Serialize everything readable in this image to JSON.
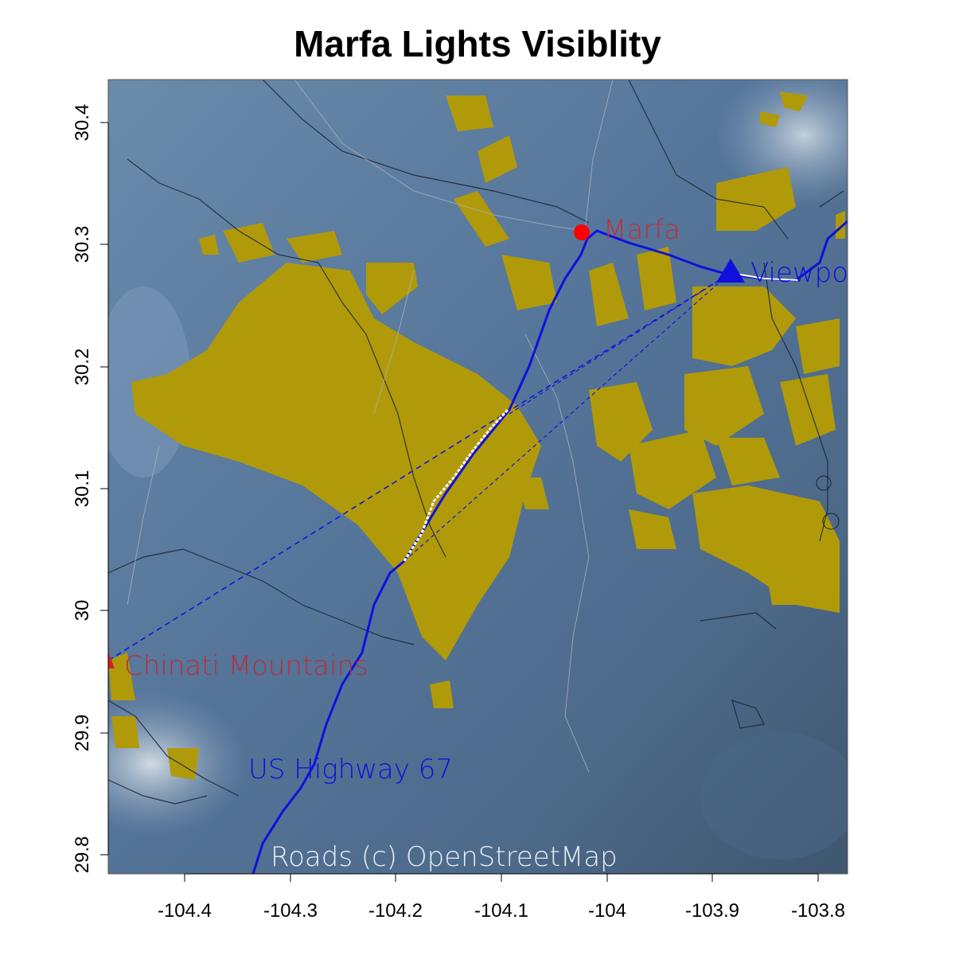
{
  "title": "Marfa Lights Visiblity",
  "attribution": "Roads (c) OpenStreetMap",
  "axes": {
    "x_ticks": [
      "-104.4",
      "-104.3",
      "-104.2",
      "-104.1",
      "-104",
      "-103.9",
      "-103.8"
    ],
    "y_ticks": [
      "30.4",
      "30.3",
      "30.2",
      "30.1",
      "30",
      "29.9",
      "29.8"
    ],
    "xlim": [
      -104.47,
      -103.77
    ],
    "ylim": [
      29.79,
      30.43
    ]
  },
  "places": {
    "marfa": {
      "label": "Marfa",
      "lon": -104.023,
      "lat": 30.309,
      "symbol": "red-circle"
    },
    "viewpoint": {
      "label": "Viewpo",
      "lon": -103.883,
      "lat": 30.274,
      "symbol": "blue-triangle"
    },
    "chinati": {
      "label": "Chinati Mountains",
      "lon": -104.47,
      "lat": 29.955,
      "symbol": "red-triangle"
    }
  },
  "highway": {
    "label": "US Highway 67"
  },
  "colors": {
    "terrain_base": "#5a7898",
    "visibility": "#b09a0a",
    "highway": "#1010dd",
    "marfa": "#ff0000",
    "label_red": "#c0303a",
    "viewpoint": "#1010dd"
  }
}
